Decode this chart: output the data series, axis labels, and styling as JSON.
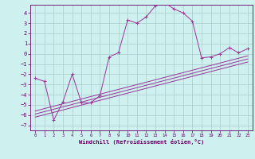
{
  "xlabel": "Windchill (Refroidissement éolien,°C)",
  "bg_color": "#cef0ee",
  "line_color": "#993399",
  "grid_color": "#aacccc",
  "xlim": [
    -0.5,
    23.5
  ],
  "ylim": [
    -7.5,
    4.8
  ],
  "xticks": [
    0,
    1,
    2,
    3,
    4,
    5,
    6,
    7,
    8,
    9,
    10,
    11,
    12,
    13,
    14,
    15,
    16,
    17,
    18,
    19,
    20,
    21,
    22,
    23
  ],
  "yticks": [
    -7,
    -6,
    -5,
    -4,
    -3,
    -2,
    -1,
    0,
    1,
    2,
    3,
    4
  ],
  "scatter_x": [
    0,
    1,
    2,
    3,
    4,
    5,
    6,
    7,
    8,
    9,
    10,
    11,
    12,
    13,
    14,
    15,
    16,
    17,
    18,
    19,
    20,
    21,
    22,
    23
  ],
  "scatter_y": [
    -2.4,
    -2.7,
    -6.5,
    -4.7,
    -2.0,
    -4.8,
    -4.8,
    -4.1,
    -0.3,
    0.1,
    3.3,
    3.0,
    3.6,
    4.7,
    5.0,
    4.4,
    4.0,
    3.2,
    -0.4,
    -0.3,
    0.0,
    0.6,
    0.1,
    0.5
  ],
  "trend_lines": [
    {
      "x": [
        0,
        23
      ],
      "y": [
        -6.2,
        -0.8
      ]
    },
    {
      "x": [
        0,
        23
      ],
      "y": [
        -5.9,
        -0.5
      ]
    },
    {
      "x": [
        0,
        23
      ],
      "y": [
        -5.6,
        -0.2
      ]
    }
  ]
}
